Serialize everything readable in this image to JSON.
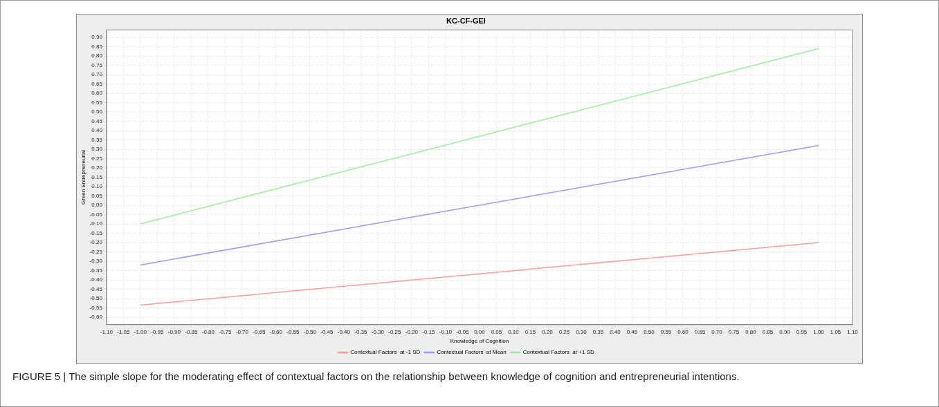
{
  "chart_data": {
    "type": "line",
    "title": "KC-CF-GEI",
    "xlabel": "Knowledge of Cognition",
    "ylabel": "Green Entrepreneurial",
    "x": [
      -1,
      1
    ],
    "series": [
      {
        "name": "Contextual Factors  at -1 SD",
        "color": "#ff9999",
        "values": [
          -0.535,
          -0.2
        ]
      },
      {
        "name": "Contextual Factors  at Mean",
        "color": "#9999ff",
        "values": [
          -0.32,
          0.32
        ]
      },
      {
        "name": "Contextual Factors  at +1 SD",
        "color": "#99ee99",
        "values": [
          -0.1,
          0.84
        ]
      }
    ],
    "xlim": [
      -1.1,
      1.1
    ],
    "ylim": [
      -0.64,
      0.94
    ],
    "xticks": [
      {
        "value": -1.1,
        "label": "-1.10"
      },
      {
        "value": -1.05,
        "label": "-1.05"
      },
      {
        "value": -1,
        "label": "-1.00"
      },
      {
        "value": -0.95,
        "label": "-0.95"
      },
      {
        "value": -0.9,
        "label": "-0.90"
      },
      {
        "value": -0.85,
        "label": "-0.85"
      },
      {
        "value": -0.8,
        "label": "-0.80"
      },
      {
        "value": -0.75,
        "label": "-0.75"
      },
      {
        "value": -0.7,
        "label": "-0.70"
      },
      {
        "value": -0.65,
        "label": "-0.65"
      },
      {
        "value": -0.6,
        "label": "-0.60"
      },
      {
        "value": -0.55,
        "label": "-0.55"
      },
      {
        "value": -0.5,
        "label": "-0.50"
      },
      {
        "value": -0.45,
        "label": "-0.45"
      },
      {
        "value": -0.4,
        "label": "-0.40"
      },
      {
        "value": -0.35,
        "label": "-0.35"
      },
      {
        "value": -0.3,
        "label": "-0.30"
      },
      {
        "value": -0.25,
        "label": "-0.25"
      },
      {
        "value": -0.2,
        "label": "-0.20"
      },
      {
        "value": -0.15,
        "label": "-0.15"
      },
      {
        "value": -0.1,
        "label": "-0.10"
      },
      {
        "value": -0.05,
        "label": "-0.05"
      },
      {
        "value": 0,
        "label": "0.00"
      },
      {
        "value": 0.05,
        "label": "0.05"
      },
      {
        "value": 0.1,
        "label": "0.10"
      },
      {
        "value": 0.15,
        "label": "0.15"
      },
      {
        "value": 0.2,
        "label": "0.20"
      },
      {
        "value": 0.25,
        "label": "0.25"
      },
      {
        "value": 0.3,
        "label": "0.30"
      },
      {
        "value": 0.35,
        "label": "0.35"
      },
      {
        "value": 0.4,
        "label": "0.40"
      },
      {
        "value": 0.45,
        "label": "0.45"
      },
      {
        "value": 0.5,
        "label": "0.50"
      },
      {
        "value": 0.55,
        "label": "0.55"
      },
      {
        "value": 0.6,
        "label": "0.60"
      },
      {
        "value": 0.65,
        "label": "0.65"
      },
      {
        "value": 0.7,
        "label": "0.70"
      },
      {
        "value": 0.75,
        "label": "0.75"
      },
      {
        "value": 0.8,
        "label": "0.80"
      },
      {
        "value": 0.85,
        "label": "0.85"
      },
      {
        "value": 0.9,
        "label": "0.90"
      },
      {
        "value": 0.95,
        "label": "0.95"
      },
      {
        "value": 1,
        "label": "1.00"
      },
      {
        "value": 1.05,
        "label": "1.05"
      },
      {
        "value": 1.1,
        "label": "1.10"
      }
    ],
    "yticks": [
      {
        "value": -0.6,
        "label": "-0.60"
      },
      {
        "value": -0.55,
        "label": "-0.55"
      },
      {
        "value": -0.5,
        "label": "-0.50"
      },
      {
        "value": -0.45,
        "label": "-0.45"
      },
      {
        "value": -0.4,
        "label": "-0.40"
      },
      {
        "value": -0.35,
        "label": "-0.35"
      },
      {
        "value": -0.3,
        "label": "-0.30"
      },
      {
        "value": -0.25,
        "label": "-0.25"
      },
      {
        "value": -0.2,
        "label": "-0.20"
      },
      {
        "value": -0.15,
        "label": "-0.15"
      },
      {
        "value": -0.1,
        "label": "-0.10"
      },
      {
        "value": -0.05,
        "label": "-0.05"
      },
      {
        "value": 0,
        "label": "0.00"
      },
      {
        "value": 0.05,
        "label": "0.05"
      },
      {
        "value": 0.1,
        "label": "0.10"
      },
      {
        "value": 0.15,
        "label": "0.15"
      },
      {
        "value": 0.2,
        "label": "0.20"
      },
      {
        "value": 0.25,
        "label": "0.25"
      },
      {
        "value": 0.3,
        "label": "0.30"
      },
      {
        "value": 0.35,
        "label": "0.35"
      },
      {
        "value": 0.4,
        "label": "0.40"
      },
      {
        "value": 0.45,
        "label": "0.45"
      },
      {
        "value": 0.5,
        "label": "0.50"
      },
      {
        "value": 0.55,
        "label": "0.55"
      },
      {
        "value": 0.6,
        "label": "0.60"
      },
      {
        "value": 0.65,
        "label": "0.65"
      },
      {
        "value": 0.7,
        "label": "0.70"
      },
      {
        "value": 0.75,
        "label": "0.75"
      },
      {
        "value": 0.8,
        "label": "0.80"
      },
      {
        "value": 0.85,
        "label": "0.85"
      },
      {
        "value": 0.9,
        "label": "0.90"
      }
    ],
    "grid": true,
    "legend": "bottom",
    "marker": "none",
    "line_style": "solid",
    "annotations": [
      "FIGURE 5 | The simple slope for the moderating effect of contextual factors on the relationship between knowledge of cognition and entrepreneurial intentions."
    ]
  }
}
